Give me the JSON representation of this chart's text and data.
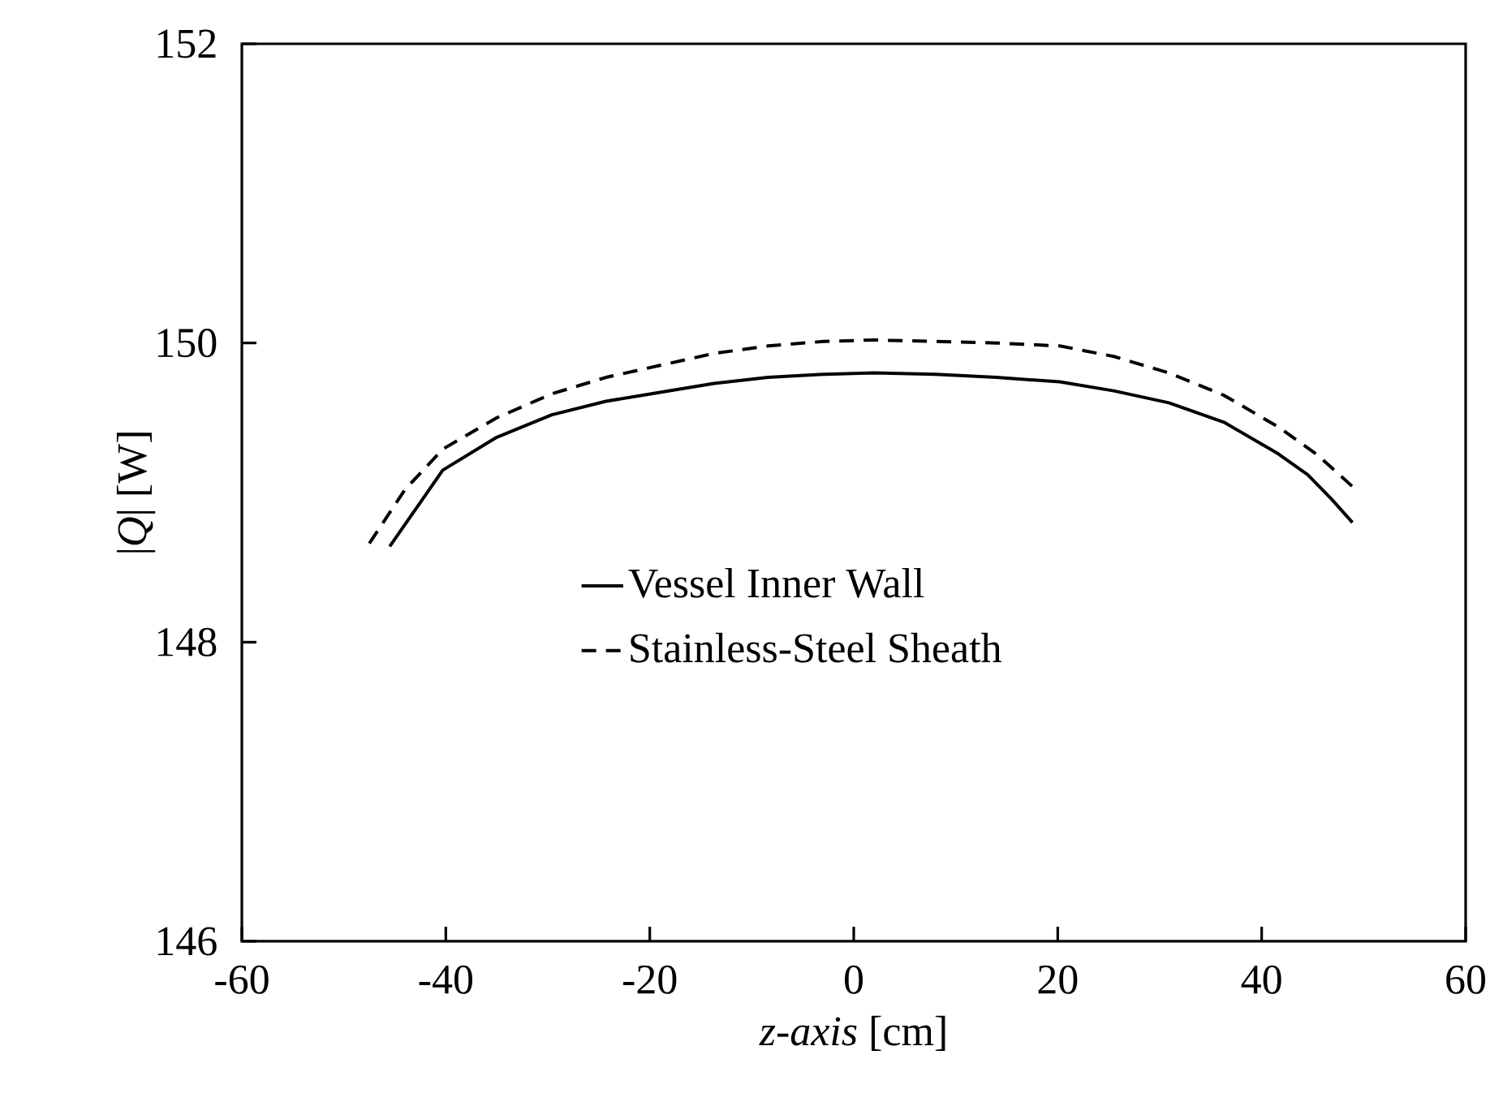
{
  "chart_data": {
    "type": "line",
    "xlabel": "*z-axis* [cm]",
    "ylabel": "|*Q*| [W]",
    "xlim": [
      -60,
      60
    ],
    "xticks": [
      -60,
      -40,
      -20,
      0,
      20,
      40,
      60
    ],
    "ylim": [
      146,
      152
    ],
    "yticks": [
      146,
      148,
      150,
      152
    ],
    "grid": false,
    "legend": "center",
    "series": [
      {
        "name": "Vessel Inner Wall",
        "color": "#000000",
        "line_style": "solid",
        "x": [
          -45.5,
          -40.3,
          -35,
          -29.6,
          -24.3,
          -19,
          -13.7,
          -8.4,
          -3,
          2,
          8,
          14,
          20.2,
          25.5,
          30.9,
          36.3,
          41.6,
          44.5,
          46.8,
          48.9
        ],
        "values": [
          148.64,
          149.15,
          149.37,
          149.52,
          149.61,
          149.67,
          149.73,
          149.77,
          149.79,
          149.8,
          149.79,
          149.77,
          149.74,
          149.68,
          149.6,
          149.47,
          149.26,
          149.12,
          148.96,
          148.8
        ]
      },
      {
        "name": "Stainless-Steel Sheath",
        "color": "#000000",
        "line_style": "dashed",
        "x": [
          -47.5,
          -44,
          -40.3,
          -35,
          -29.6,
          -24.3,
          -19,
          -13.7,
          -8.4,
          -3,
          2,
          8,
          14,
          20.2,
          25.5,
          30.9,
          36.3,
          41.6,
          45.5,
          48.9
        ],
        "values": [
          148.66,
          149.02,
          149.29,
          149.5,
          149.66,
          149.77,
          149.85,
          149.93,
          149.98,
          150.01,
          150.02,
          150.01,
          150.0,
          149.98,
          149.91,
          149.8,
          149.65,
          149.44,
          149.25,
          149.04
        ]
      }
    ]
  }
}
